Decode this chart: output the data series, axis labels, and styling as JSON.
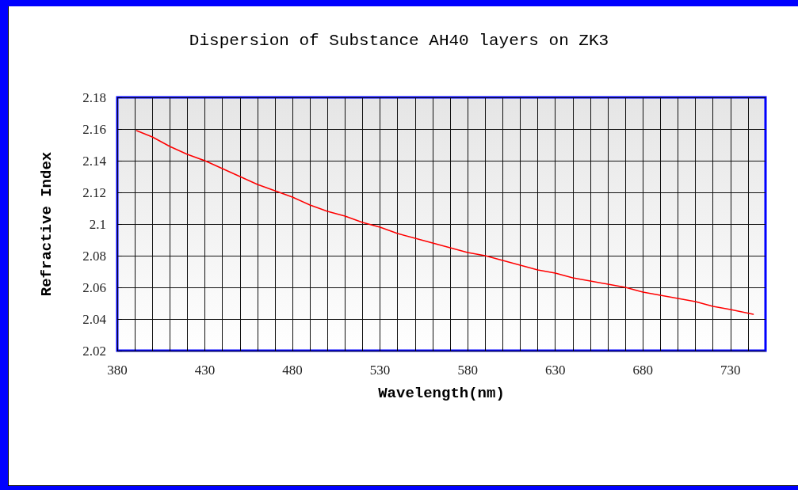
{
  "chart_data": {
    "type": "line",
    "title": "Dispersion of Substance AH40 layers on ZK3",
    "xlabel": "Wavelength(nm)",
    "ylabel": "Refractive Index",
    "x": [
      391,
      400,
      410,
      420,
      430,
      440,
      450,
      460,
      470,
      480,
      490,
      500,
      510,
      520,
      530,
      540,
      550,
      560,
      570,
      580,
      590,
      600,
      610,
      620,
      630,
      640,
      650,
      660,
      670,
      680,
      690,
      700,
      710,
      720,
      730,
      743
    ],
    "series": [
      {
        "color": "#ff0000",
        "values": [
          2.159,
          2.155,
          2.149,
          2.144,
          2.14,
          2.135,
          2.13,
          2.125,
          2.121,
          2.117,
          2.112,
          2.108,
          2.105,
          2.101,
          2.098,
          2.094,
          2.091,
          2.088,
          2.085,
          2.082,
          2.08,
          2.077,
          2.074,
          2.071,
          2.069,
          2.066,
          2.064,
          2.062,
          2.06,
          2.057,
          2.055,
          2.053,
          2.051,
          2.048,
          2.046,
          2.043
        ]
      }
    ],
    "xlim": [
      380,
      750
    ],
    "xticks": [
      380,
      {
        "value": 390,
        "label": null
      },
      {
        "value": 400,
        "label": null
      },
      {
        "value": 410,
        "label": null
      },
      {
        "value": 420,
        "label": null
      },
      430,
      {
        "value": 440,
        "label": null
      },
      {
        "value": 450,
        "label": null
      },
      {
        "value": 460,
        "label": null
      },
      {
        "value": 470,
        "label": null
      },
      480,
      {
        "value": 490,
        "label": null
      },
      {
        "value": 500,
        "label": null
      },
      {
        "value": 510,
        "label": null
      },
      {
        "value": 520,
        "label": null
      },
      530,
      {
        "value": 540,
        "label": null
      },
      {
        "value": 550,
        "label": null
      },
      {
        "value": 560,
        "label": null
      },
      {
        "value": 570,
        "label": null
      },
      580,
      {
        "value": 590,
        "label": null
      },
      {
        "value": 600,
        "label": null
      },
      {
        "value": 610,
        "label": null
      },
      {
        "value": 620,
        "label": null
      },
      630,
      {
        "value": 640,
        "label": null
      },
      {
        "value": 650,
        "label": null
      },
      {
        "value": 660,
        "label": null
      },
      {
        "value": 670,
        "label": null
      },
      680,
      {
        "value": 690,
        "label": null
      },
      {
        "value": 700,
        "label": null
      },
      {
        "value": 710,
        "label": null
      },
      {
        "value": 720,
        "label": null
      },
      730,
      {
        "value": 740,
        "label": null
      }
    ],
    "ylim": [
      2.02,
      2.18
    ],
    "yticks": [
      2.02,
      2.04,
      2.06,
      2.08,
      2.1,
      2.12,
      2.14,
      2.16,
      2.18
    ],
    "grid": true,
    "marker": "none",
    "line_style": "solid"
  }
}
